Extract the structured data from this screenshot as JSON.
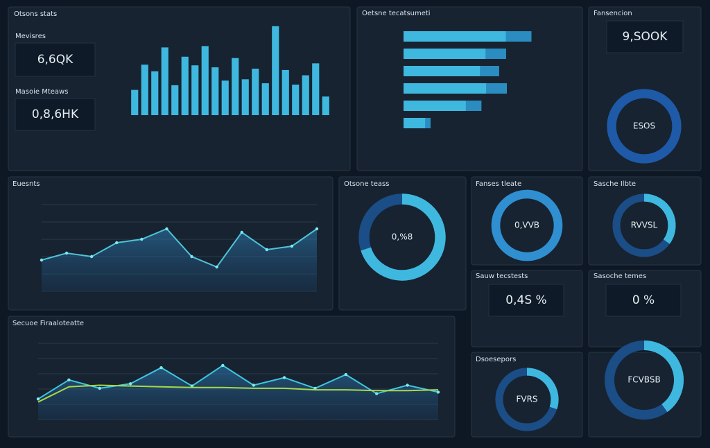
{
  "chart_data": [
    {
      "type": "bar",
      "title": "Otsons stats",
      "values": [
        38,
        76,
        66,
        102,
        45,
        88,
        75,
        104,
        72,
        52,
        86,
        54,
        70,
        48,
        134,
        68,
        46,
        60,
        78,
        28
      ],
      "ylim": [
        0,
        140
      ],
      "color": "#3fb8e0"
    },
    {
      "type": "hbar",
      "title": "Oetsne tecatsumeti",
      "values": [
        166,
        133,
        124,
        134,
        101,
        35
      ],
      "xlim": [
        0,
        180
      ],
      "color": "#3fb8e0"
    },
    {
      "type": "donut",
      "title": "Fansencion",
      "values": [
        100
      ],
      "center_label": "ESOS",
      "color": "#1e5aa8"
    },
    {
      "type": "line",
      "title": "Euesnts",
      "values": [
        36,
        44,
        40,
        56,
        60,
        72,
        40,
        28,
        68,
        48,
        52,
        72
      ],
      "ylim": [
        0,
        100
      ],
      "color": "#4fc3d9",
      "area": true
    },
    {
      "type": "donut",
      "title": "Otsone teass",
      "values": [
        70
      ],
      "center_label": "0,%8",
      "color": "#3fb8e0"
    },
    {
      "type": "donut",
      "title": "Fanses tleate",
      "values": [
        100
      ],
      "center_label": "0,VVB",
      "color": "#2f8fd0"
    },
    {
      "type": "donut",
      "title": "Sasche Ilbte",
      "values": [
        35
      ],
      "center_label": "RVVSL",
      "color": "#3fb8e0"
    },
    {
      "type": "line",
      "title": "Secuoe Firaaloteatte",
      "ylim": [
        0,
        100
      ],
      "area": true,
      "series": [
        {
          "color": "#3ec6e0",
          "values": [
            27,
            52,
            41,
            47,
            68,
            44,
            71,
            45,
            55,
            41,
            59,
            34,
            45,
            36
          ]
        },
        {
          "color": "#a8d84a",
          "values": [
            23,
            43,
            45,
            44,
            43,
            42,
            42,
            41,
            41,
            39,
            39,
            38,
            38,
            39
          ]
        }
      ]
    },
    {
      "type": "donut",
      "title": "Dsoesepors",
      "values": [
        30
      ],
      "center_label": "FVRS",
      "color": "#3fb8e0"
    },
    {
      "type": "donut",
      "values": [
        40
      ],
      "center_label": "FCVBSB",
      "color": "#3fb8e0"
    }
  ],
  "cards": [
    {
      "title": "Mevisres",
      "value": "6,6QK"
    },
    {
      "title": "Masoie Mteaws",
      "value": "0,8,6HK"
    },
    {
      "value": "9,SOOK"
    },
    {
      "title": "Sauw tecstests",
      "value": "0,4S %"
    },
    {
      "title": "Sasoche temes",
      "value": "0 %"
    }
  ]
}
